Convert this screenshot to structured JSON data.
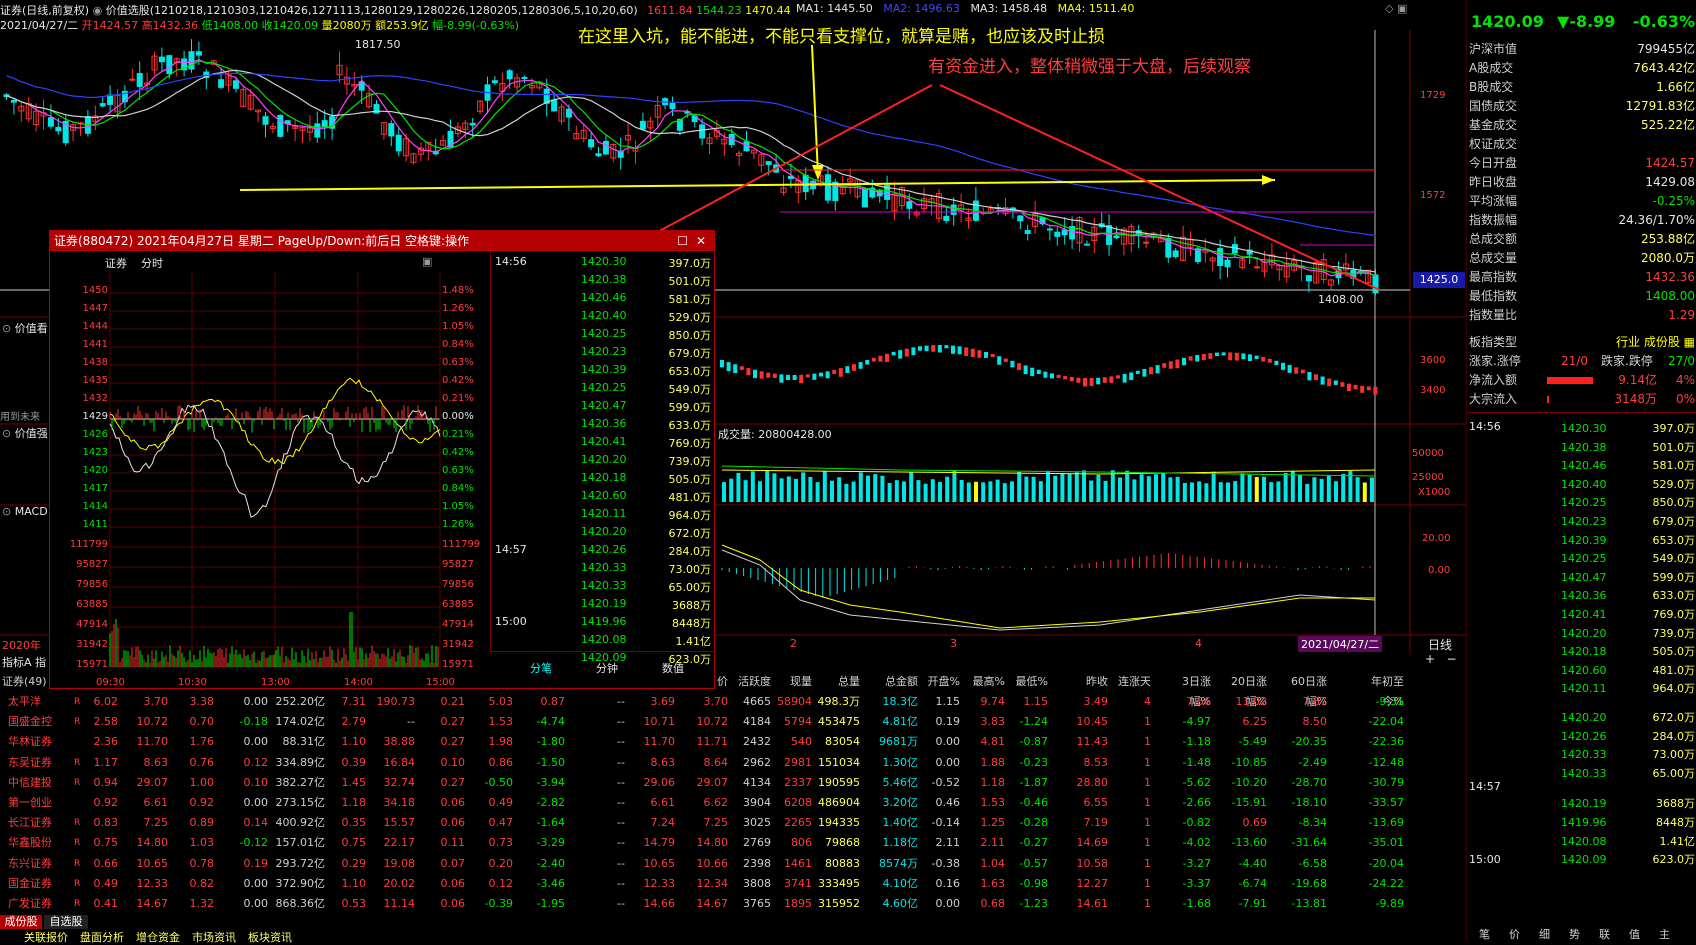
{
  "header": {
    "title": "证券(日线,前复权)",
    "indicator": "价值选股(1210218,1210303,1210426,1271113,1280129,1280226,1280205,1280306,5,10,20,60)",
    "ind_v1": "1611.84",
    "ind_v2": "1544.23",
    "ind_v3": "1470.44",
    "ma1": "MA1: 1445.50",
    "ma2": "MA2: 1496.63",
    "ma3": "MA3: 1458.48",
    "ma4": "MA4: 1511.40",
    "date": "2021/04/27/二",
    "open": "开1424.57",
    "high": "高1432.36",
    "low": "低1408.00",
    "close": "收1420.09",
    "vol": "量2080万",
    "amt": "额253.9亿",
    "chg": "幅-8.99(-0.63%)"
  },
  "chart": {
    "peak_label": "1817.50",
    "low_label": "1408.00",
    "price_tag": "1425.0",
    "axis_1729": "1729",
    "axis_1572": "1572",
    "sub1_axis_3600": "3600",
    "sub1_axis_3400": "3400",
    "vol_title": "成交量: 20800428.00",
    "vol_axis_50000": "50000",
    "vol_axis_25000": "25000",
    "vol_axis_unit": "X1000",
    "macd_axis_20": "20.00",
    "macd_axis_0": "0.00",
    "x_labels": [
      "2",
      "3",
      "4"
    ],
    "x_date": "2021/04/27/二",
    "period_label": "日线",
    "left_labels": [
      "价值看",
      "用到未来",
      "价值强",
      "MACD",
      "2020年",
      "指标A",
      "指"
    ]
  },
  "annotations": {
    "a1": "在这里入坑，能不能进，不能只看支撑位，就算是赌，也应该及时止损",
    "a2": "有资金进入，整体稍微强于大盘，后续观察"
  },
  "popup": {
    "title": "证券(880472) 2021年04月27日 星期二 PageUp/Down:前后日 空格键:操作",
    "tab1": "证券",
    "tab2": "分时",
    "price_axis": [
      "1450",
      "1447",
      "1444",
      "1441",
      "1438",
      "1435",
      "1432",
      "1429",
      "1426",
      "1423",
      "1420",
      "1417",
      "1414",
      "1411"
    ],
    "pct_axis": [
      "1.48%",
      "1.26%",
      "1.05%",
      "0.84%",
      "0.63%",
      "0.42%",
      "0.21%",
      "0.00%",
      "0.21%",
      "0.42%",
      "0.63%",
      "0.84%",
      "1.05%",
      "1.26%"
    ],
    "vol_axis": [
      "111799",
      "95827",
      "79856",
      "63885",
      "47914",
      "31942",
      "15971"
    ],
    "time_axis": [
      "09:30",
      "10:30",
      "13:00",
      "14:00",
      "15:00"
    ],
    "ticks_time1": "14:56",
    "ticks_time2": "14:57",
    "ticks_time3": "15:00",
    "ticks": [
      [
        "1420.30",
        "397.0万"
      ],
      [
        "1420.38",
        "501.0万"
      ],
      [
        "1420.46",
        "581.0万"
      ],
      [
        "1420.40",
        "529.0万"
      ],
      [
        "1420.25",
        "850.0万"
      ],
      [
        "1420.23",
        "679.0万"
      ],
      [
        "1420.39",
        "653.0万"
      ],
      [
        "1420.25",
        "549.0万"
      ],
      [
        "1420.47",
        "599.0万"
      ],
      [
        "1420.36",
        "633.0万"
      ],
      [
        "1420.41",
        "769.0万"
      ],
      [
        "1420.20",
        "739.0万"
      ],
      [
        "1420.18",
        "505.0万"
      ],
      [
        "1420.60",
        "481.0万"
      ],
      [
        "1420.11",
        "964.0万"
      ],
      [
        "1420.20",
        "672.0万"
      ],
      [
        "1420.26",
        "284.0万"
      ],
      [
        "1420.33",
        "73.00万"
      ],
      [
        "1420.33",
        "65.00万"
      ],
      [
        "1420.19",
        "3688万"
      ],
      [
        "1419.96",
        "8448万"
      ],
      [
        "1420.08",
        "1.41亿"
      ],
      [
        "1420.09",
        "623.0万"
      ]
    ],
    "tab_fenbi": "分笔",
    "tab_fenzhong": "分钟",
    "tab_shuju": "数值"
  },
  "right_panel": {
    "price": "1420.09",
    "change": "-8.99",
    "pct": "-0.63%",
    "rows": [
      {
        "label": "沪深市值",
        "value": "799455亿",
        "color": "#e6e6e6"
      },
      {
        "label": "A股成交",
        "value": "7643.42亿",
        "color": "#ffff66"
      },
      {
        "label": "B股成交",
        "value": "1.66亿",
        "color": "#ffff66"
      },
      {
        "label": "国债成交",
        "value": "12791.83亿",
        "color": "#ffff66"
      },
      {
        "label": "基金成交",
        "value": "525.22亿",
        "color": "#ffff66"
      },
      {
        "label": "权证成交",
        "value": "",
        "color": "#ffff66"
      },
      {
        "label": "今日开盘",
        "value": "1424.57",
        "color": "#ff3d3d"
      },
      {
        "label": "昨日收盘",
        "value": "1429.08",
        "color": "#e6e6e6"
      },
      {
        "label": "平均涨幅",
        "value": "-0.25%",
        "color": "#00e400"
      },
      {
        "label": "指数振幅",
        "value": "24.36/1.70%",
        "color": "#e6e6e6"
      },
      {
        "label": "总成交额",
        "value": "253.88亿",
        "color": "#ffff66"
      },
      {
        "label": "总成交量",
        "value": "2080.0万",
        "color": "#ffff66"
      },
      {
        "label": "最高指数",
        "value": "1432.36",
        "color": "#ff3d3d"
      },
      {
        "label": "最低指数",
        "value": "1408.00",
        "color": "#00e400"
      },
      {
        "label": "指数量比",
        "value": "1.29",
        "color": "#ff3d3d"
      }
    ],
    "board_type_label": "板指类型",
    "board_type_value": "行业 成份股",
    "updown_label": "涨家.涨停",
    "updown_value": "21/0",
    "down_label": "跌家.跌停",
    "down_value": "27/0",
    "netin_label": "净流入额",
    "netin_value": "9.14亿",
    "netin_pct": "4%",
    "block_label": "大宗流入",
    "block_value": "3148万",
    "block_pct": "0%",
    "time1": "14:56",
    "time2": "14:57",
    "time3": "15:00",
    "bottom_tabs": [
      "笔",
      "价",
      "细",
      "势",
      "联",
      "值",
      "主"
    ]
  },
  "table": {
    "left_label": "证券(49)",
    "headers": [
      "",
      "",
      "",
      "",
      "",
      "",
      "",
      "",
      "",
      "",
      "",
      "",
      "",
      "价",
      "活跃度",
      "现量",
      "总量",
      "总金额",
      "开盘%",
      "最高%",
      "最低%",
      "昨收",
      "连涨天",
      "3日涨幅%",
      "20日涨幅%",
      "60日涨幅%",
      "年初至今%"
    ],
    "rows": [
      [
        "太平洋",
        "6.02",
        "3.70",
        "3.38",
        "0.00",
        "252.20亿",
        "7.31",
        "190.73",
        "0.21",
        "5.03",
        "0.87",
        "--",
        "3.69",
        "3.70",
        "4665",
        "58904",
        "498.3万",
        "18.3亿",
        "1.15",
        "9.74",
        "1.15",
        "3.49",
        "4",
        "7.56",
        "11.02",
        "7.87",
        "-9.31"
      ],
      [
        "国盛金控",
        "2.58",
        "10.72",
        "0.70",
        "-0.18",
        "174.02亿",
        "2.79",
        "--",
        "0.27",
        "1.53",
        "-4.74",
        "--",
        "10.71",
        "10.72",
        "4184",
        "5794",
        "453475",
        "4.81亿",
        "0.19",
        "3.83",
        "-1.24",
        "10.45",
        "1",
        "-4.97",
        "6.25",
        "8.50",
        "-22.04"
      ],
      [
        "华林证券",
        "2.36",
        "11.70",
        "1.76",
        "0.00",
        "88.31亿",
        "1.10",
        "38.88",
        "0.27",
        "1.98",
        "-1.80",
        "--",
        "11.70",
        "11.71",
        "2432",
        "540",
        "83054",
        "9681万",
        "0.00",
        "4.81",
        "-0.87",
        "11.43",
        "1",
        "-1.18",
        "-5.49",
        "-20.35",
        "-22.36"
      ],
      [
        "东吴证券",
        "1.17",
        "8.63",
        "0.76",
        "0.12",
        "334.89亿",
        "0.39",
        "16.84",
        "0.10",
        "0.86",
        "-1.50",
        "--",
        "8.63",
        "8.64",
        "2962",
        "2981",
        "151034",
        "1.30亿",
        "0.00",
        "1.88",
        "-0.23",
        "8.53",
        "1",
        "-1.48",
        "-10.85",
        "-2.49",
        "-12.48"
      ],
      [
        "中信建投",
        "0.94",
        "29.07",
        "1.00",
        "0.10",
        "382.27亿",
        "1.45",
        "32.74",
        "0.27",
        "-0.50",
        "-3.94",
        "--",
        "29.06",
        "29.07",
        "4134",
        "2337",
        "190595",
        "5.46亿",
        "-0.52",
        "1.18",
        "-1.87",
        "28.80",
        "1",
        "-5.62",
        "-10.20",
        "-28.70",
        "-30.79"
      ],
      [
        "第一创业",
        "0.92",
        "6.61",
        "0.92",
        "0.00",
        "273.15亿",
        "1.18",
        "34.18",
        "0.06",
        "0.49",
        "-2.82",
        "--",
        "6.61",
        "6.62",
        "3904",
        "6208",
        "486904",
        "3.20亿",
        "0.46",
        "1.53",
        "-0.46",
        "6.55",
        "1",
        "-2.66",
        "-15.91",
        "-18.10",
        "-33.57"
      ],
      [
        "长江证券",
        "0.83",
        "7.25",
        "0.89",
        "0.14",
        "400.92亿",
        "0.35",
        "15.57",
        "0.06",
        "0.47",
        "-1.64",
        "--",
        "7.24",
        "7.25",
        "3025",
        "2265",
        "194335",
        "1.40亿",
        "-0.14",
        "1.25",
        "-0.28",
        "7.19",
        "1",
        "-0.82",
        "0.69",
        "-8.34",
        "-13.69"
      ],
      [
        "华鑫股份",
        "0.75",
        "14.80",
        "1.03",
        "-0.12",
        "157.01亿",
        "0.75",
        "22.17",
        "0.11",
        "0.73",
        "-3.29",
        "--",
        "14.79",
        "14.80",
        "2769",
        "806",
        "79868",
        "1.18亿",
        "2.11",
        "2.11",
        "-0.27",
        "14.69",
        "1",
        "-4.02",
        "-13.60",
        "-31.64",
        "-35.01"
      ],
      [
        "东兴证券",
        "0.66",
        "10.65",
        "0.78",
        "0.19",
        "293.72亿",
        "0.29",
        "19.08",
        "0.07",
        "0.20",
        "-2.40",
        "--",
        "10.65",
        "10.66",
        "2398",
        "1461",
        "80883",
        "8574万",
        "-0.38",
        "1.04",
        "-0.57",
        "10.58",
        "1",
        "-3.27",
        "-4.40",
        "-6.58",
        "-20.04"
      ],
      [
        "国金证券",
        "0.49",
        "12.33",
        "0.82",
        "0.00",
        "372.90亿",
        "1.10",
        "20.02",
        "0.06",
        "0.12",
        "-3.46",
        "--",
        "12.33",
        "12.34",
        "3808",
        "3741",
        "333495",
        "4.10亿",
        "0.16",
        "1.63",
        "-0.98",
        "12.27",
        "1",
        "-3.37",
        "-6.74",
        "-19.68",
        "-24.22"
      ],
      [
        "广发证券",
        "0.41",
        "14.67",
        "1.32",
        "0.00",
        "868.36亿",
        "0.53",
        "11.14",
        "0.06",
        "-0.39",
        "-1.95",
        "--",
        "14.66",
        "14.67",
        "3765",
        "1895",
        "315952",
        "4.60亿",
        "0.00",
        "0.68",
        "-1.23",
        "14.61",
        "1",
        "-1.68",
        "-7.91",
        "-13.81",
        "-9.89"
      ]
    ]
  },
  "bottom_tabs": {
    "t1": "成份股",
    "t2": "自选股",
    "items": [
      "关联报价",
      "盘面分析",
      "增仓资金",
      "市场资讯",
      "板块资讯"
    ]
  }
}
